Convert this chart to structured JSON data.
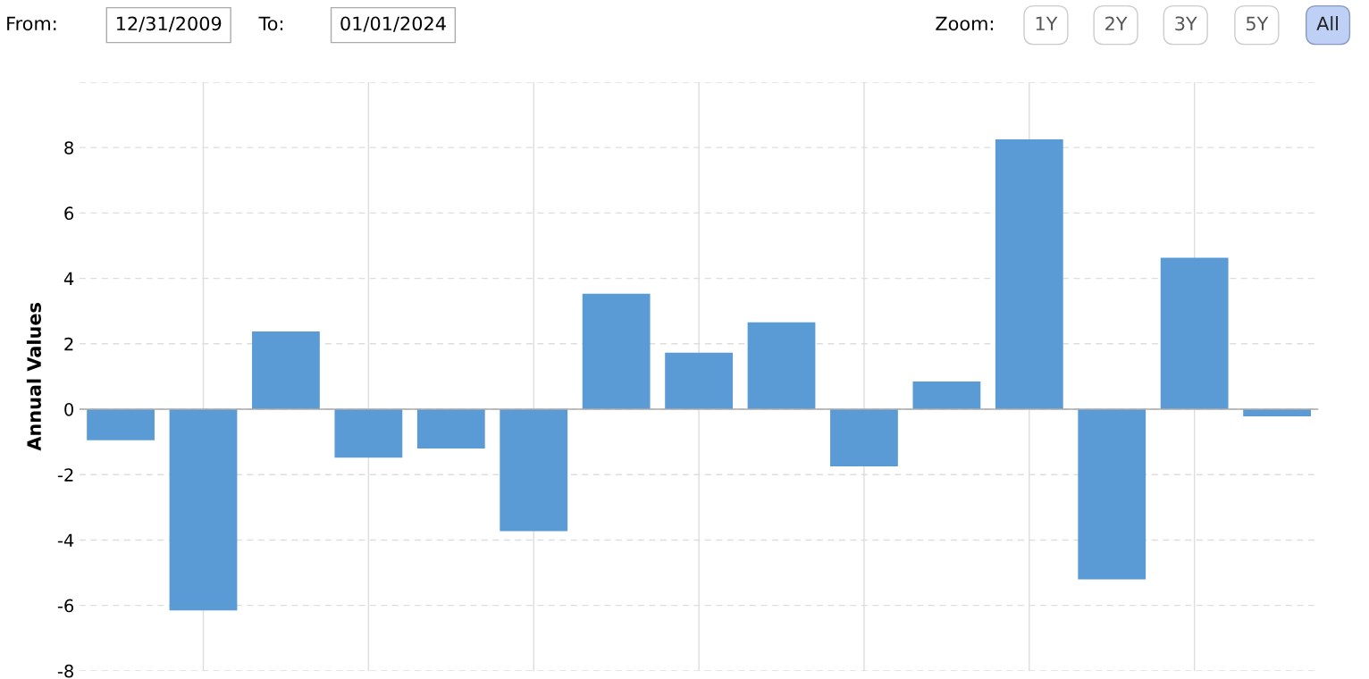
{
  "chart_data": {
    "type": "bar",
    "ylabel": "Annual Values",
    "categories": [
      null,
      null,
      null,
      null,
      null,
      null,
      null,
      null,
      null,
      null,
      null,
      null,
      null,
      null,
      null
    ],
    "values": [
      -0.95,
      -6.15,
      2.38,
      -1.48,
      -1.2,
      -3.73,
      3.53,
      1.73,
      2.66,
      -1.75,
      0.85,
      8.25,
      -5.2,
      4.63,
      -0.22
    ],
    "color": "#5b9bd5",
    "ylim": [
      -8,
      10
    ],
    "yticks": [
      -8,
      -6,
      -4,
      -2,
      0,
      2,
      4,
      6,
      8,
      {
        "value": 10,
        "label": null
      }
    ],
    "grid": true,
    "annotations": [
      "From:",
      "12/31/2009",
      "To:",
      "01/01/2024",
      "Zoom:",
      "1Y",
      "2Y",
      "3Y",
      "5Y",
      "All"
    ]
  }
}
